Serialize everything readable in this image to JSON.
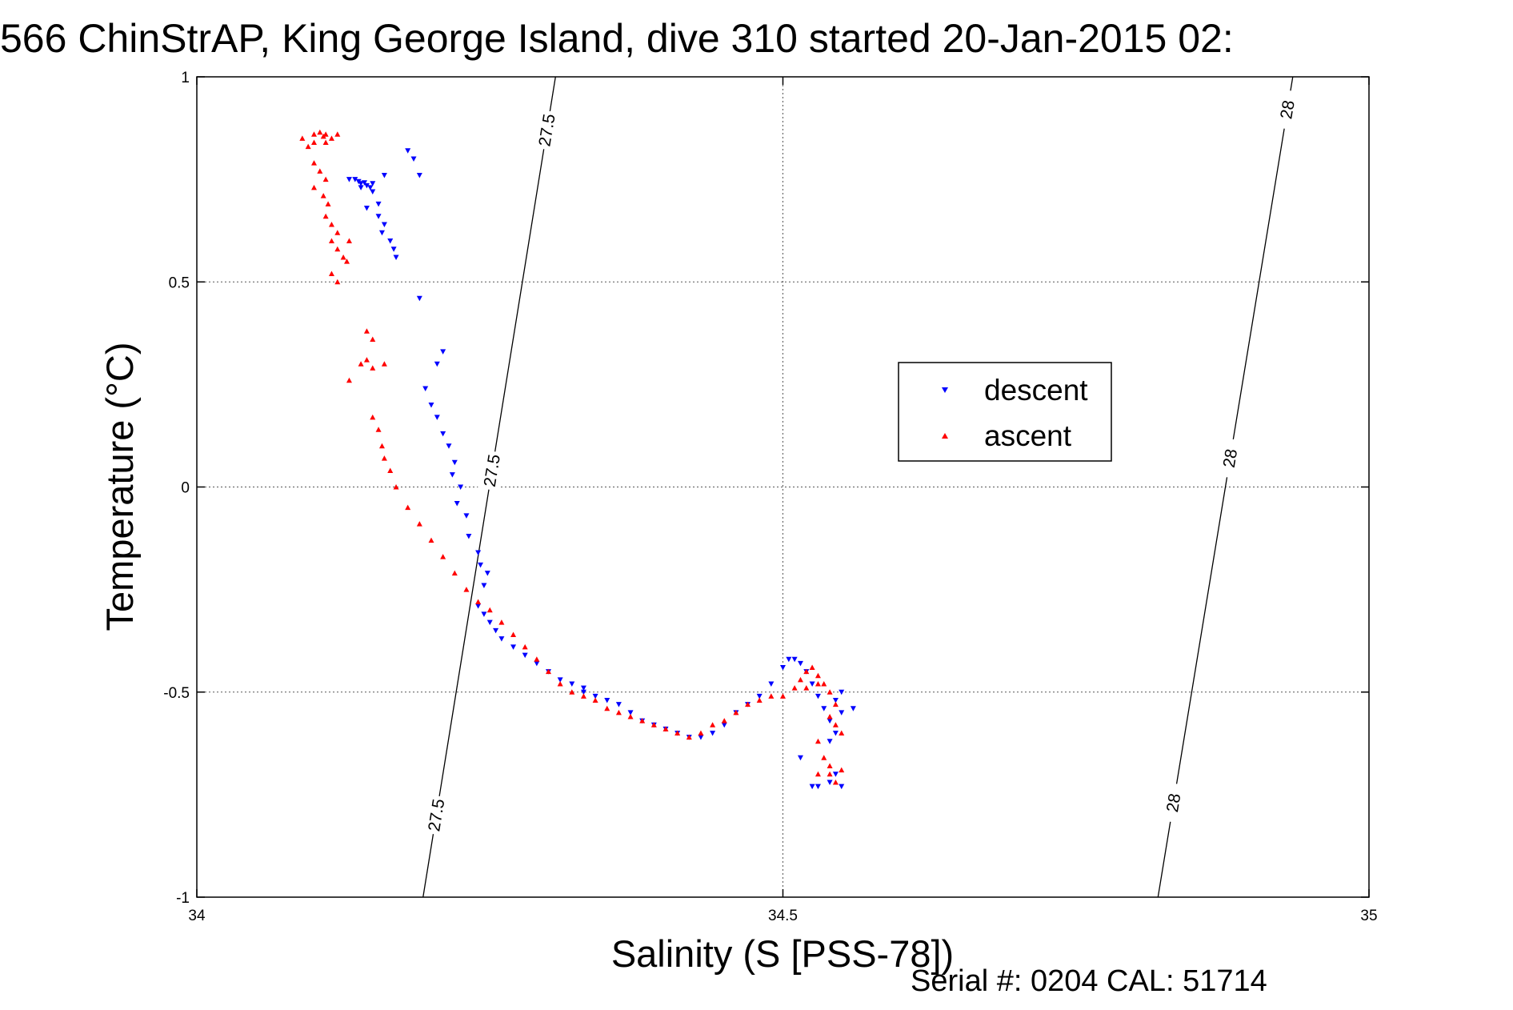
{
  "chart_data": {
    "type": "scatter",
    "title": "566 ChinStrAP, King George Island, dive 310 started 20-Jan-2015 02:",
    "xlabel": "Salinity (S [PSS-78])",
    "ylabel": "Temperature (°C)",
    "xlim": [
      34,
      35
    ],
    "ylim": [
      -1,
      1
    ],
    "x_ticks": [
      "34",
      "34.5",
      "35"
    ],
    "y_ticks": [
      "1",
      "0.5",
      "0",
      "-0.5",
      "-1"
    ],
    "grid": true,
    "legend_position": "upper-right",
    "series": [
      {
        "name": "descent",
        "color": "#0000ff",
        "marker": "triangle-down",
        "points": [
          [
            34.13,
            0.75
          ],
          [
            34.135,
            0.75
          ],
          [
            34.138,
            0.745
          ],
          [
            34.14,
            0.74
          ],
          [
            34.143,
            0.742
          ],
          [
            34.145,
            0.735
          ],
          [
            34.148,
            0.73
          ],
          [
            34.15,
            0.74
          ],
          [
            34.14,
            0.73
          ],
          [
            34.15,
            0.72
          ],
          [
            34.155,
            0.69
          ],
          [
            34.145,
            0.68
          ],
          [
            34.155,
            0.66
          ],
          [
            34.16,
            0.64
          ],
          [
            34.158,
            0.62
          ],
          [
            34.165,
            0.6
          ],
          [
            34.168,
            0.58
          ],
          [
            34.17,
            0.56
          ],
          [
            34.18,
            0.82
          ],
          [
            34.185,
            0.8
          ],
          [
            34.19,
            0.76
          ],
          [
            34.16,
            0.76
          ],
          [
            34.19,
            0.46
          ],
          [
            34.21,
            0.33
          ],
          [
            34.205,
            0.3
          ],
          [
            34.195,
            0.24
          ],
          [
            34.2,
            0.2
          ],
          [
            34.205,
            0.17
          ],
          [
            34.21,
            0.13
          ],
          [
            34.215,
            0.1
          ],
          [
            34.22,
            0.06
          ],
          [
            34.218,
            0.03
          ],
          [
            34.225,
            0.0
          ],
          [
            34.222,
            -0.04
          ],
          [
            34.23,
            -0.07
          ],
          [
            34.232,
            -0.12
          ],
          [
            34.24,
            -0.16
          ],
          [
            34.242,
            -0.19
          ],
          [
            34.248,
            -0.21
          ],
          [
            34.245,
            -0.24
          ],
          [
            34.24,
            -0.29
          ],
          [
            34.245,
            -0.31
          ],
          [
            34.25,
            -0.33
          ],
          [
            34.255,
            -0.35
          ],
          [
            34.26,
            -0.37
          ],
          [
            34.27,
            -0.39
          ],
          [
            34.28,
            -0.41
          ],
          [
            34.29,
            -0.43
          ],
          [
            34.3,
            -0.45
          ],
          [
            34.31,
            -0.47
          ],
          [
            34.32,
            -0.48
          ],
          [
            34.33,
            -0.49
          ],
          [
            34.33,
            -0.5
          ],
          [
            34.34,
            -0.51
          ],
          [
            34.35,
            -0.52
          ],
          [
            34.36,
            -0.53
          ],
          [
            34.37,
            -0.55
          ],
          [
            34.38,
            -0.57
          ],
          [
            34.39,
            -0.58
          ],
          [
            34.4,
            -0.59
          ],
          [
            34.41,
            -0.6
          ],
          [
            34.42,
            -0.61
          ],
          [
            34.43,
            -0.61
          ],
          [
            34.44,
            -0.6
          ],
          [
            34.45,
            -0.58
          ],
          [
            34.46,
            -0.55
          ],
          [
            34.47,
            -0.53
          ],
          [
            34.48,
            -0.51
          ],
          [
            34.49,
            -0.48
          ],
          [
            34.5,
            -0.44
          ],
          [
            34.505,
            -0.42
          ],
          [
            34.51,
            -0.42
          ],
          [
            34.515,
            -0.43
          ],
          [
            34.52,
            -0.45
          ],
          [
            34.525,
            -0.48
          ],
          [
            34.53,
            -0.51
          ],
          [
            34.535,
            -0.54
          ],
          [
            34.54,
            -0.57
          ],
          [
            34.545,
            -0.6
          ],
          [
            34.54,
            -0.62
          ],
          [
            34.55,
            -0.55
          ],
          [
            34.56,
            -0.54
          ],
          [
            34.55,
            -0.5
          ],
          [
            34.545,
            -0.52
          ],
          [
            34.515,
            -0.66
          ],
          [
            34.525,
            -0.73
          ],
          [
            34.53,
            -0.73
          ],
          [
            34.54,
            -0.72
          ],
          [
            34.55,
            -0.73
          ],
          [
            34.545,
            -0.7
          ]
        ]
      },
      {
        "name": "ascent",
        "color": "#ff0000",
        "marker": "triangle-up",
        "points": [
          [
            34.09,
            0.85
          ],
          [
            34.1,
            0.86
          ],
          [
            34.105,
            0.865
          ],
          [
            34.11,
            0.86
          ],
          [
            34.115,
            0.85
          ],
          [
            34.12,
            0.86
          ],
          [
            34.1,
            0.84
          ],
          [
            34.095,
            0.83
          ],
          [
            34.11,
            0.84
          ],
          [
            34.108,
            0.855
          ],
          [
            34.1,
            0.79
          ],
          [
            34.105,
            0.77
          ],
          [
            34.11,
            0.75
          ],
          [
            34.1,
            0.73
          ],
          [
            34.108,
            0.71
          ],
          [
            34.112,
            0.69
          ],
          [
            34.11,
            0.66
          ],
          [
            34.115,
            0.64
          ],
          [
            34.12,
            0.62
          ],
          [
            34.115,
            0.6
          ],
          [
            34.12,
            0.58
          ],
          [
            34.125,
            0.56
          ],
          [
            34.13,
            0.6
          ],
          [
            34.128,
            0.55
          ],
          [
            34.115,
            0.52
          ],
          [
            34.12,
            0.5
          ],
          [
            34.145,
            0.38
          ],
          [
            34.15,
            0.36
          ],
          [
            34.14,
            0.3
          ],
          [
            34.15,
            0.29
          ],
          [
            34.16,
            0.3
          ],
          [
            34.13,
            0.26
          ],
          [
            34.145,
            0.31
          ],
          [
            34.15,
            0.17
          ],
          [
            34.155,
            0.14
          ],
          [
            34.158,
            0.1
          ],
          [
            34.16,
            0.07
          ],
          [
            34.165,
            0.04
          ],
          [
            34.17,
            0.0
          ],
          [
            34.18,
            -0.05
          ],
          [
            34.19,
            -0.09
          ],
          [
            34.2,
            -0.13
          ],
          [
            34.21,
            -0.17
          ],
          [
            34.22,
            -0.21
          ],
          [
            34.23,
            -0.25
          ],
          [
            34.24,
            -0.28
          ],
          [
            34.25,
            -0.3
          ],
          [
            34.26,
            -0.33
          ],
          [
            34.27,
            -0.36
          ],
          [
            34.28,
            -0.39
          ],
          [
            34.29,
            -0.42
          ],
          [
            34.3,
            -0.45
          ],
          [
            34.31,
            -0.48
          ],
          [
            34.32,
            -0.5
          ],
          [
            34.33,
            -0.51
          ],
          [
            34.34,
            -0.52
          ],
          [
            34.35,
            -0.54
          ],
          [
            34.36,
            -0.55
          ],
          [
            34.37,
            -0.56
          ],
          [
            34.38,
            -0.57
          ],
          [
            34.39,
            -0.58
          ],
          [
            34.4,
            -0.59
          ],
          [
            34.41,
            -0.6
          ],
          [
            34.42,
            -0.61
          ],
          [
            34.43,
            -0.6
          ],
          [
            34.44,
            -0.58
          ],
          [
            34.45,
            -0.57
          ],
          [
            34.46,
            -0.55
          ],
          [
            34.47,
            -0.53
          ],
          [
            34.48,
            -0.52
          ],
          [
            34.49,
            -0.51
          ],
          [
            34.5,
            -0.51
          ],
          [
            34.51,
            -0.49
          ],
          [
            34.515,
            -0.47
          ],
          [
            34.52,
            -0.45
          ],
          [
            34.525,
            -0.44
          ],
          [
            34.53,
            -0.46
          ],
          [
            34.535,
            -0.48
          ],
          [
            34.54,
            -0.5
          ],
          [
            34.545,
            -0.53
          ],
          [
            34.54,
            -0.56
          ],
          [
            34.545,
            -0.58
          ],
          [
            34.55,
            -0.6
          ],
          [
            34.53,
            -0.62
          ],
          [
            34.535,
            -0.66
          ],
          [
            34.54,
            -0.68
          ],
          [
            34.54,
            -0.7
          ],
          [
            34.545,
            -0.72
          ],
          [
            34.53,
            -0.7
          ],
          [
            34.55,
            -0.69
          ],
          [
            34.52,
            -0.49
          ],
          [
            34.53,
            -0.48
          ]
        ]
      }
    ],
    "isopycnals": [
      {
        "label": "27.5",
        "x_top": 34.306,
        "x_bottom": 34.193,
        "labels_at_y": [
          0.87,
          0.04,
          -0.8
        ]
      },
      {
        "label": "28",
        "x_top": 34.935,
        "x_bottom": 34.82,
        "labels_at_y": [
          0.92,
          0.07,
          -0.77
        ]
      }
    ]
  },
  "footer": {
    "serial_text": "Serial #: 0204  CAL: 51714"
  }
}
